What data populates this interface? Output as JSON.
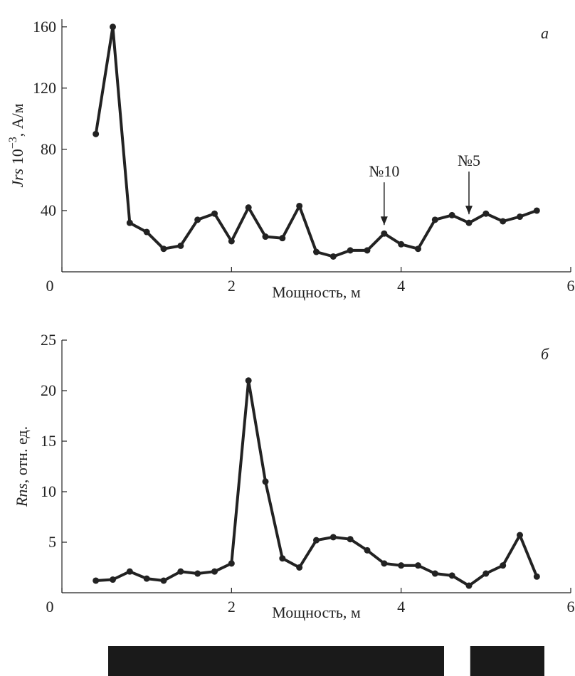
{
  "chart_data": [
    {
      "type": "line",
      "panel_label": "а",
      "xlabel": "Мощность, м",
      "ylabel_var": "Jrs",
      "ylabel_rest": " 10",
      "ylabel_exp": "−3",
      "ylabel_unit": ", А/м",
      "xlim": [
        0,
        6
      ],
      "ylim": [
        0,
        165
      ],
      "xticks": [
        0,
        2,
        4,
        6
      ],
      "yticks": [
        40,
        80,
        120,
        160
      ],
      "x": [
        0.4,
        0.6,
        0.8,
        1.0,
        1.2,
        1.4,
        1.6,
        1.8,
        2.0,
        2.2,
        2.4,
        2.6,
        2.8,
        3.0,
        3.2,
        3.4,
        3.6,
        3.8,
        4.0,
        4.2,
        4.4,
        4.6,
        4.8,
        5.0,
        5.2,
        5.4,
        5.6
      ],
      "y": [
        90,
        160,
        32,
        26,
        15,
        17,
        34,
        38,
        20,
        42,
        23,
        22,
        43,
        13,
        10,
        14,
        14,
        25,
        18,
        15,
        34,
        37,
        32,
        38,
        33,
        36,
        40
      ],
      "annotations": [
        {
          "text": "№10",
          "x": 3.8,
          "y": 25
        },
        {
          "text": "№5",
          "x": 4.8,
          "y": 32
        }
      ],
      "grid": false
    },
    {
      "type": "line",
      "panel_label": "б",
      "xlabel": "Мощность, м",
      "ylabel_var": "Rns",
      "ylabel_rest": ", отн. ед.",
      "xlim": [
        0,
        6
      ],
      "ylim": [
        0,
        25
      ],
      "xticks": [
        0,
        2,
        4,
        6
      ],
      "yticks": [
        5,
        10,
        15,
        20,
        25
      ],
      "x": [
        0.4,
        0.6,
        0.8,
        1.0,
        1.2,
        1.4,
        1.6,
        1.8,
        2.0,
        2.2,
        2.4,
        2.6,
        2.8,
        3.0,
        3.2,
        3.4,
        3.6,
        3.8,
        4.0,
        4.2,
        4.4,
        4.6,
        4.8,
        5.0,
        5.2,
        5.4,
        5.6
      ],
      "y": [
        1.2,
        1.3,
        2.1,
        1.4,
        1.2,
        2.1,
        1.9,
        2.1,
        2.9,
        21.0,
        11.0,
        3.4,
        2.5,
        5.2,
        5.5,
        5.3,
        4.2,
        2.9,
        2.7,
        2.7,
        1.9,
        1.7,
        0.7,
        1.9,
        2.7,
        5.7,
        1.6
      ],
      "grid": false
    }
  ],
  "stratigraphy_bar": {
    "segments": [
      {
        "from": 0.0,
        "to": 0.77,
        "color": "#1a1a1a"
      },
      {
        "from": 0.77,
        "to": 0.83,
        "color": "#ffffff"
      },
      {
        "from": 0.83,
        "to": 1.0,
        "color": "#1a1a1a"
      }
    ]
  }
}
